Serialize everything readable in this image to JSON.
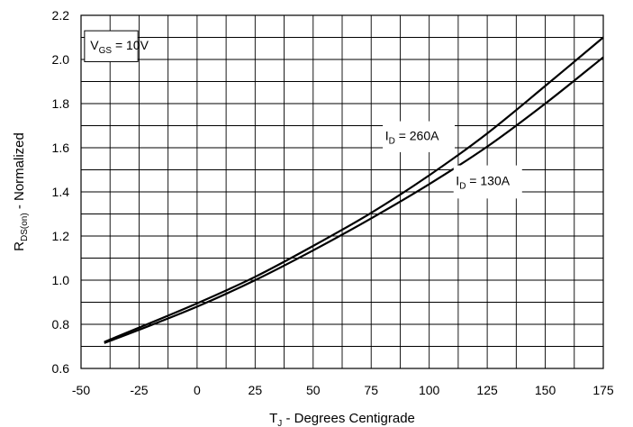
{
  "chart_data": {
    "type": "line",
    "xlabel": {
      "main": "T",
      "sub": "J",
      "rest": " - Degrees Centigrade"
    },
    "ylabel": {
      "main": "R",
      "sub": "DS(on)",
      "rest": " - Normalized"
    },
    "xlim": [
      -50,
      175
    ],
    "ylim": [
      0.6,
      2.2
    ],
    "x_ticks": [
      -50,
      -25,
      0,
      25,
      50,
      75,
      100,
      125,
      150,
      175
    ],
    "x_tick_labels": [
      "-50",
      "-25",
      "0",
      "25",
      "50",
      "75",
      "100",
      "125",
      "150",
      "175"
    ],
    "y_ticks": [
      0.6,
      0.8,
      1.0,
      1.2,
      1.4,
      1.6,
      1.8,
      2.0,
      2.2
    ],
    "y_tick_labels": [
      "0.6",
      "0.8",
      "1.0",
      "1.2",
      "1.4",
      "1.6",
      "1.8",
      "2.0",
      "2.2"
    ],
    "x_minor_step": 12.5,
    "y_minor_step": 0.1,
    "grid": true,
    "series": [
      {
        "label_main": "I",
        "label_sub": "D",
        "label_rest": " = 260A",
        "x": [
          -40,
          -25,
          0,
          25,
          50,
          75,
          100,
          125,
          150,
          175
        ],
        "y": [
          0.72,
          0.785,
          0.895,
          1.015,
          1.155,
          1.305,
          1.475,
          1.665,
          1.88,
          2.1
        ]
      },
      {
        "label_main": "I",
        "label_sub": "D",
        "label_rest": " = 130A",
        "x": [
          -40,
          -25,
          0,
          25,
          50,
          75,
          100,
          125,
          150,
          175
        ],
        "y": [
          0.715,
          0.775,
          0.88,
          1.0,
          1.135,
          1.28,
          1.435,
          1.605,
          1.8,
          2.01
        ]
      }
    ],
    "annotations": [
      {
        "main": "V",
        "sub": "GS",
        "rest": " = 10V",
        "boxed": true
      }
    ]
  }
}
